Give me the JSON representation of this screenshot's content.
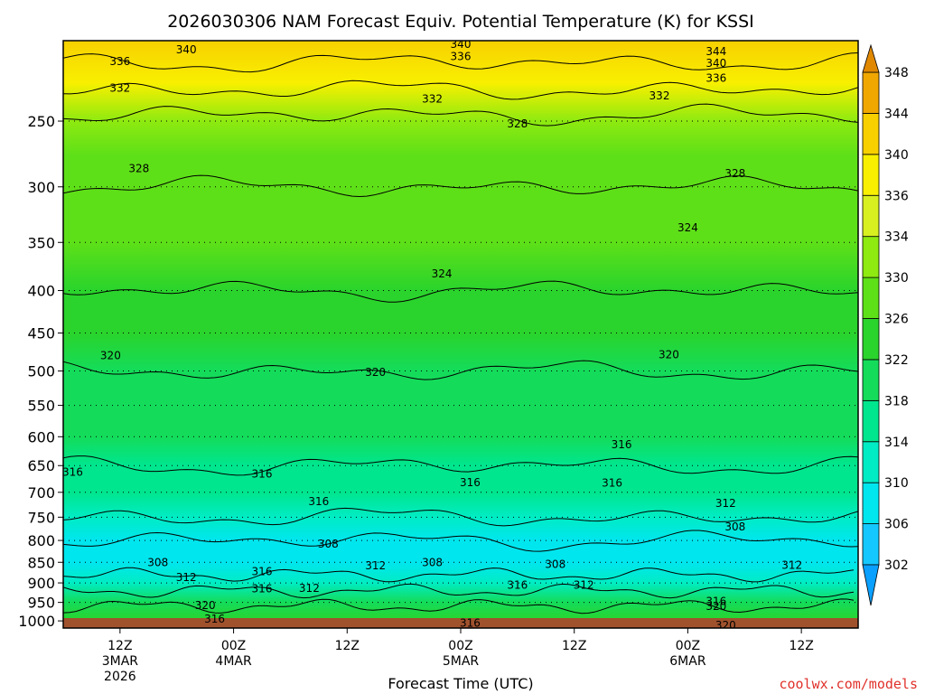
{
  "chart_data": {
    "type": "time-height contour",
    "title": "2026030306 NAM Forecast Equiv. Potential Temperature (K) for KSSI",
    "xlabel": "Forecast Time (UTC)",
    "credit": "coolwx.com/models",
    "y_axis": {
      "scale": "log-pressure",
      "range": [
        1020,
        200
      ],
      "ticks": [
        250,
        300,
        350,
        400,
        450,
        500,
        550,
        600,
        650,
        700,
        750,
        800,
        850,
        900,
        950,
        1000
      ]
    },
    "x_axis": {
      "range_hours": [
        0,
        84
      ],
      "ticks": [
        {
          "hour": 6,
          "lines": [
            "12Z",
            "3MAR",
            "2026"
          ]
        },
        {
          "hour": 18,
          "lines": [
            "00Z",
            "4MAR"
          ]
        },
        {
          "hour": 30,
          "lines": [
            "12Z"
          ]
        },
        {
          "hour": 42,
          "lines": [
            "00Z",
            "5MAR"
          ]
        },
        {
          "hour": 54,
          "lines": [
            "12Z"
          ]
        },
        {
          "hour": 66,
          "lines": [
            "00Z",
            "6MAR"
          ]
        },
        {
          "hour": 78,
          "lines": [
            "12Z"
          ]
        }
      ]
    },
    "grid": "dotted horizontal lines at pressure ticks",
    "colorbar": {
      "levels": [
        302,
        306,
        310,
        314,
        318,
        322,
        326,
        330,
        334,
        336,
        340,
        344,
        348
      ],
      "colors": [
        "#0aa0ff",
        "#14c8ff",
        "#00e6ee",
        "#00ecc4",
        "#00e68e",
        "#14dc5a",
        "#2ad42c",
        "#5ee018",
        "#8eea10",
        "#d8f020",
        "#f8f000",
        "#f8d000",
        "#f0a800",
        "#e08800"
      ]
    },
    "profile_theta_e_K": {
      "pressure_hPa": [
        200,
        225,
        250,
        275,
        300,
        350,
        400,
        450,
        500,
        550,
        600,
        650,
        700,
        750,
        800,
        850,
        900,
        950,
        1000
      ],
      "theta_e_K": [
        343,
        337,
        331,
        329,
        328,
        326,
        324,
        322,
        320,
        319,
        318,
        316,
        314,
        312,
        308,
        307,
        312,
        318,
        322
      ]
    },
    "contour_labels": [
      {
        "text": "340",
        "p": 205,
        "h": 13
      },
      {
        "text": "336",
        "p": 212,
        "h": 6
      },
      {
        "text": "332",
        "p": 228,
        "h": 6
      },
      {
        "text": "340",
        "p": 202,
        "h": 42
      },
      {
        "text": "336",
        "p": 209,
        "h": 42
      },
      {
        "text": "332",
        "p": 235,
        "h": 39
      },
      {
        "text": "344",
        "p": 206,
        "h": 69
      },
      {
        "text": "340",
        "p": 213,
        "h": 69
      },
      {
        "text": "336",
        "p": 222,
        "h": 69
      },
      {
        "text": "332",
        "p": 233,
        "h": 63
      },
      {
        "text": "328",
        "p": 252,
        "h": 48
      },
      {
        "text": "328",
        "p": 285,
        "h": 8
      },
      {
        "text": "328",
        "p": 289,
        "h": 71
      },
      {
        "text": "324",
        "p": 336,
        "h": 66
      },
      {
        "text": "324",
        "p": 382,
        "h": 40
      },
      {
        "text": "320",
        "p": 479,
        "h": 5
      },
      {
        "text": "320",
        "p": 502,
        "h": 33
      },
      {
        "text": "320",
        "p": 478,
        "h": 64
      },
      {
        "text": "316",
        "p": 613,
        "h": 59
      },
      {
        "text": "316",
        "p": 662,
        "h": 1
      },
      {
        "text": "316",
        "p": 665,
        "h": 21
      },
      {
        "text": "316",
        "p": 681,
        "h": 43
      },
      {
        "text": "316",
        "p": 682,
        "h": 58
      },
      {
        "text": "316",
        "p": 718,
        "h": 27
      },
      {
        "text": "312",
        "p": 722,
        "h": 70
      },
      {
        "text": "308",
        "p": 770,
        "h": 71
      },
      {
        "text": "308",
        "p": 808,
        "h": 28
      },
      {
        "text": "308",
        "p": 850,
        "h": 10
      },
      {
        "text": "308",
        "p": 850,
        "h": 39
      },
      {
        "text": "308",
        "p": 855,
        "h": 52
      },
      {
        "text": "312",
        "p": 858,
        "h": 33
      },
      {
        "text": "312",
        "p": 857,
        "h": 77
      },
      {
        "text": "312",
        "p": 886,
        "h": 13
      },
      {
        "text": "316",
        "p": 872,
        "h": 21
      },
      {
        "text": "312",
        "p": 914,
        "h": 26
      },
      {
        "text": "316",
        "p": 906,
        "h": 48
      },
      {
        "text": "312",
        "p": 905,
        "h": 55
      },
      {
        "text": "316",
        "p": 915,
        "h": 21
      },
      {
        "text": "316",
        "p": 947,
        "h": 69
      },
      {
        "text": "320",
        "p": 958,
        "h": 15
      },
      {
        "text": "320",
        "p": 960,
        "h": 69
      },
      {
        "text": "316",
        "p": 995,
        "h": 16
      },
      {
        "text": "316",
        "p": 1006,
        "h": 43
      },
      {
        "text": "320",
        "p": 1012,
        "h": 70
      }
    ]
  }
}
